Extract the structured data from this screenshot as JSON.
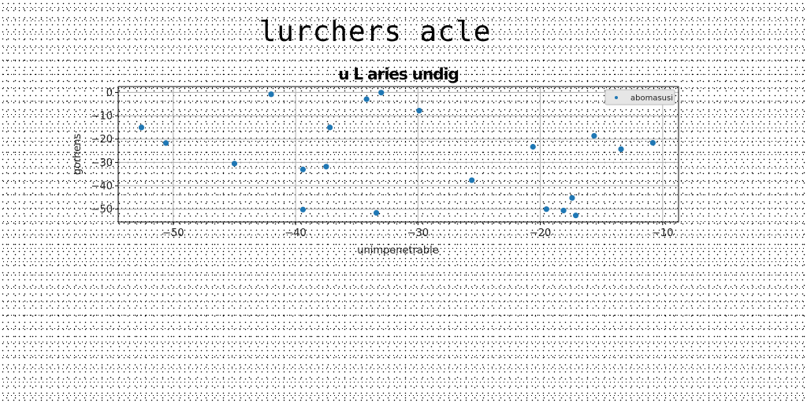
{
  "page": {
    "title": "lurchers acle"
  },
  "chart_data": {
    "type": "scatter",
    "title": "u L aries undig",
    "xlabel": "unimpenetrable",
    "ylabel": "gorhens",
    "xlim": [
      -54.5,
      -8.7
    ],
    "ylim": [
      -55.5,
      2.5
    ],
    "xticks": [
      -50,
      -40,
      -30,
      -20,
      -10
    ],
    "yticks": [
      0,
      -10,
      -20,
      -30,
      -40,
      -50
    ],
    "grid": true,
    "legend_position": "upper-right",
    "colors": {
      "series": "#1f77b4"
    },
    "series": [
      {
        "name": "abomasusi",
        "x": [
          -52.6,
          -50.6,
          -45.0,
          -42.0,
          -39.4,
          -39.4,
          -37.5,
          -37.2,
          -34.2,
          -33.4,
          -33.0,
          -29.9,
          -25.6,
          -20.6,
          -19.5,
          -18.1,
          -17.4,
          -17.1,
          -15.6,
          -13.4,
          -10.8
        ],
        "y": [
          -15.0,
          -21.7,
          -30.5,
          -0.8,
          -33.0,
          -50.2,
          -31.8,
          -15.0,
          -2.9,
          -51.6,
          -0.1,
          -7.8,
          -37.6,
          -23.3,
          -50.0,
          -50.6,
          -45.2,
          -52.7,
          -18.6,
          -24.3,
          -21.6
        ]
      }
    ]
  }
}
